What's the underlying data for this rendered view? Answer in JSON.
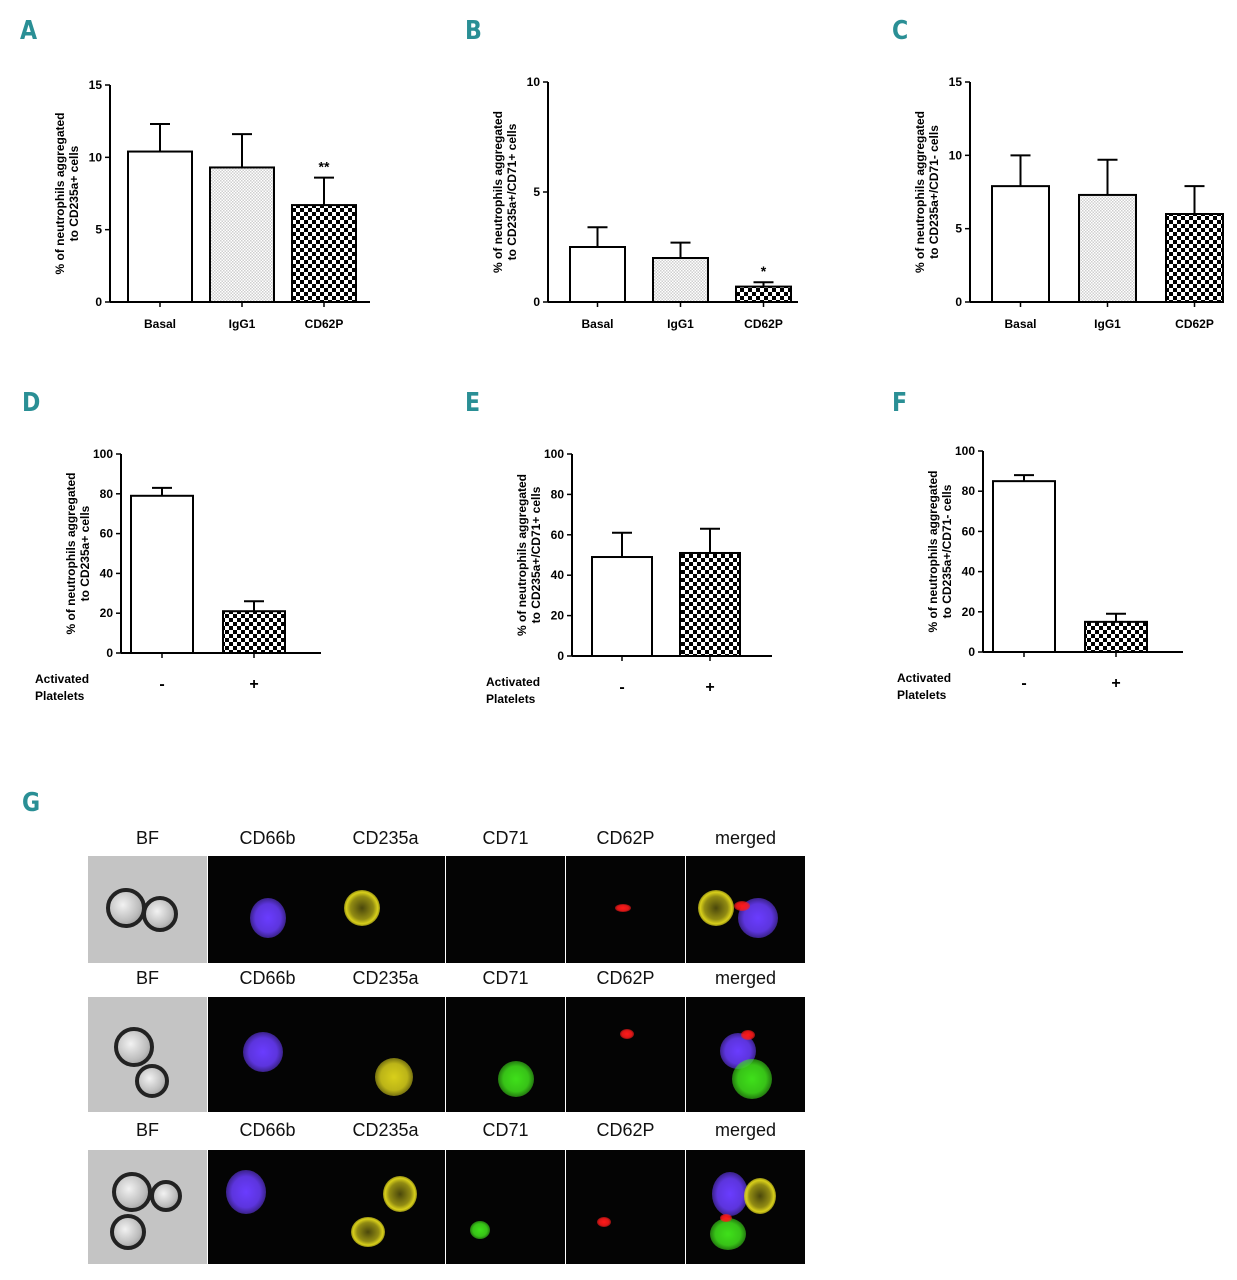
{
  "panel_letters": {
    "A": "A",
    "B": "B",
    "C": "C",
    "D": "D",
    "E": "E",
    "F": "F",
    "G": "G"
  },
  "colors": {
    "letter": "#2a8f95",
    "bar_stroke": "#000000",
    "dots": "#cfcfcf",
    "check": "#000000"
  },
  "chart_data": [
    {
      "id": "A",
      "type": "bar",
      "categories": [
        "Basal",
        "IgG1",
        "CD62P"
      ],
      "values": [
        10.4,
        9.3,
        6.7
      ],
      "errors": [
        1.9,
        2.3,
        1.9
      ],
      "patterns": [
        "white",
        "dots",
        "check"
      ],
      "annotations": [
        "",
        "",
        "**"
      ],
      "ylabel_lines": [
        "% of neutrophils aggregated",
        "to CD235a+ cells"
      ],
      "ylim": [
        0,
        15
      ],
      "yticks": [
        "0",
        "5",
        "10",
        "15"
      ],
      "ytick_values": [
        0,
        5,
        10,
        15
      ]
    },
    {
      "id": "B",
      "type": "bar",
      "categories": [
        "Basal",
        "IgG1",
        "CD62P"
      ],
      "values": [
        2.5,
        2.0,
        0.7
      ],
      "errors": [
        0.9,
        0.7,
        0.2
      ],
      "patterns": [
        "white",
        "dots",
        "check"
      ],
      "annotations": [
        "",
        "",
        "*"
      ],
      "ylabel_lines": [
        "% of neutrophils aggregated",
        "to CD235a+/CD71+ cells"
      ],
      "ylim": [
        0,
        10
      ],
      "yticks": [
        "0",
        "5",
        "10"
      ],
      "ytick_values": [
        0,
        5,
        10
      ]
    },
    {
      "id": "C",
      "type": "bar",
      "categories": [
        "Basal",
        "IgG1",
        "CD62P"
      ],
      "values": [
        7.9,
        7.3,
        6.0
      ],
      "errors": [
        2.1,
        2.4,
        1.9
      ],
      "patterns": [
        "white",
        "dots",
        "check"
      ],
      "annotations": [
        "",
        "",
        ""
      ],
      "ylabel_lines": [
        "% of neutrophils aggregated",
        "to CD235a+/CD71- cells"
      ],
      "ylim": [
        0,
        15
      ],
      "yticks": [
        "0",
        "5",
        "10",
        "15"
      ],
      "ytick_values": [
        0,
        5,
        10,
        15
      ]
    },
    {
      "id": "D",
      "type": "bar",
      "categories": [
        "-",
        "+"
      ],
      "values": [
        79,
        21
      ],
      "errors": [
        4,
        5
      ],
      "patterns": [
        "white",
        "check"
      ],
      "annotations": [
        "",
        ""
      ],
      "ylabel_lines": [
        "% of neutrophils aggregated",
        "to CD235a+ cells"
      ],
      "ylim": [
        0,
        100
      ],
      "yticks": [
        "0",
        "20",
        "40",
        "60",
        "80",
        "100"
      ],
      "ytick_values": [
        0,
        20,
        40,
        60,
        80,
        100
      ],
      "xgroup_label": [
        "Activated",
        "Platelets"
      ]
    },
    {
      "id": "E",
      "type": "bar",
      "categories": [
        "-",
        "+"
      ],
      "values": [
        49,
        51
      ],
      "errors": [
        12,
        12
      ],
      "patterns": [
        "white",
        "check"
      ],
      "annotations": [
        "",
        ""
      ],
      "ylabel_lines": [
        "% of neutrophils aggregated",
        "to CD235a+/CD71+ cells"
      ],
      "ylim": [
        0,
        100
      ],
      "yticks": [
        "0",
        "20",
        "40",
        "60",
        "80",
        "100"
      ],
      "ytick_values": [
        0,
        20,
        40,
        60,
        80,
        100
      ],
      "xgroup_label": [
        "Activated",
        "Platelets"
      ]
    },
    {
      "id": "F",
      "type": "bar",
      "categories": [
        "-",
        "+"
      ],
      "values": [
        85,
        15
      ],
      "errors": [
        3,
        4
      ],
      "patterns": [
        "white",
        "check"
      ],
      "annotations": [
        "",
        ""
      ],
      "ylabel_lines": [
        "% of neutrophils aggregated",
        "to CD235a+/CD71- cells"
      ],
      "ylim": [
        0,
        100
      ],
      "yticks": [
        "0",
        "20",
        "40",
        "60",
        "80",
        "100"
      ],
      "ytick_values": [
        0,
        20,
        40,
        60,
        80,
        100
      ],
      "xgroup_label": [
        "Activated",
        "Platelets"
      ]
    }
  ],
  "microscopy": {
    "channels": [
      "BF",
      "CD66b",
      "CD235a",
      "CD71",
      "CD62P",
      "merged"
    ],
    "rows": [
      {
        "labels": [
          "BF",
          "CD66b",
          "CD235a",
          "CD71",
          "CD62P",
          "merged"
        ]
      },
      {
        "labels": [
          "BF",
          "CD66b",
          "CD235a",
          "CD71",
          "CD62P",
          "merged"
        ]
      },
      {
        "labels": [
          "BF",
          "CD66b",
          "CD235a",
          "CD71",
          "CD62P",
          "merged"
        ]
      }
    ],
    "channel_colors": {
      "CD66b": "#6a3cff",
      "CD235a": "#d8cf1a",
      "CD71": "#3fe01a",
      "CD62P": "#ff1a1a"
    }
  }
}
